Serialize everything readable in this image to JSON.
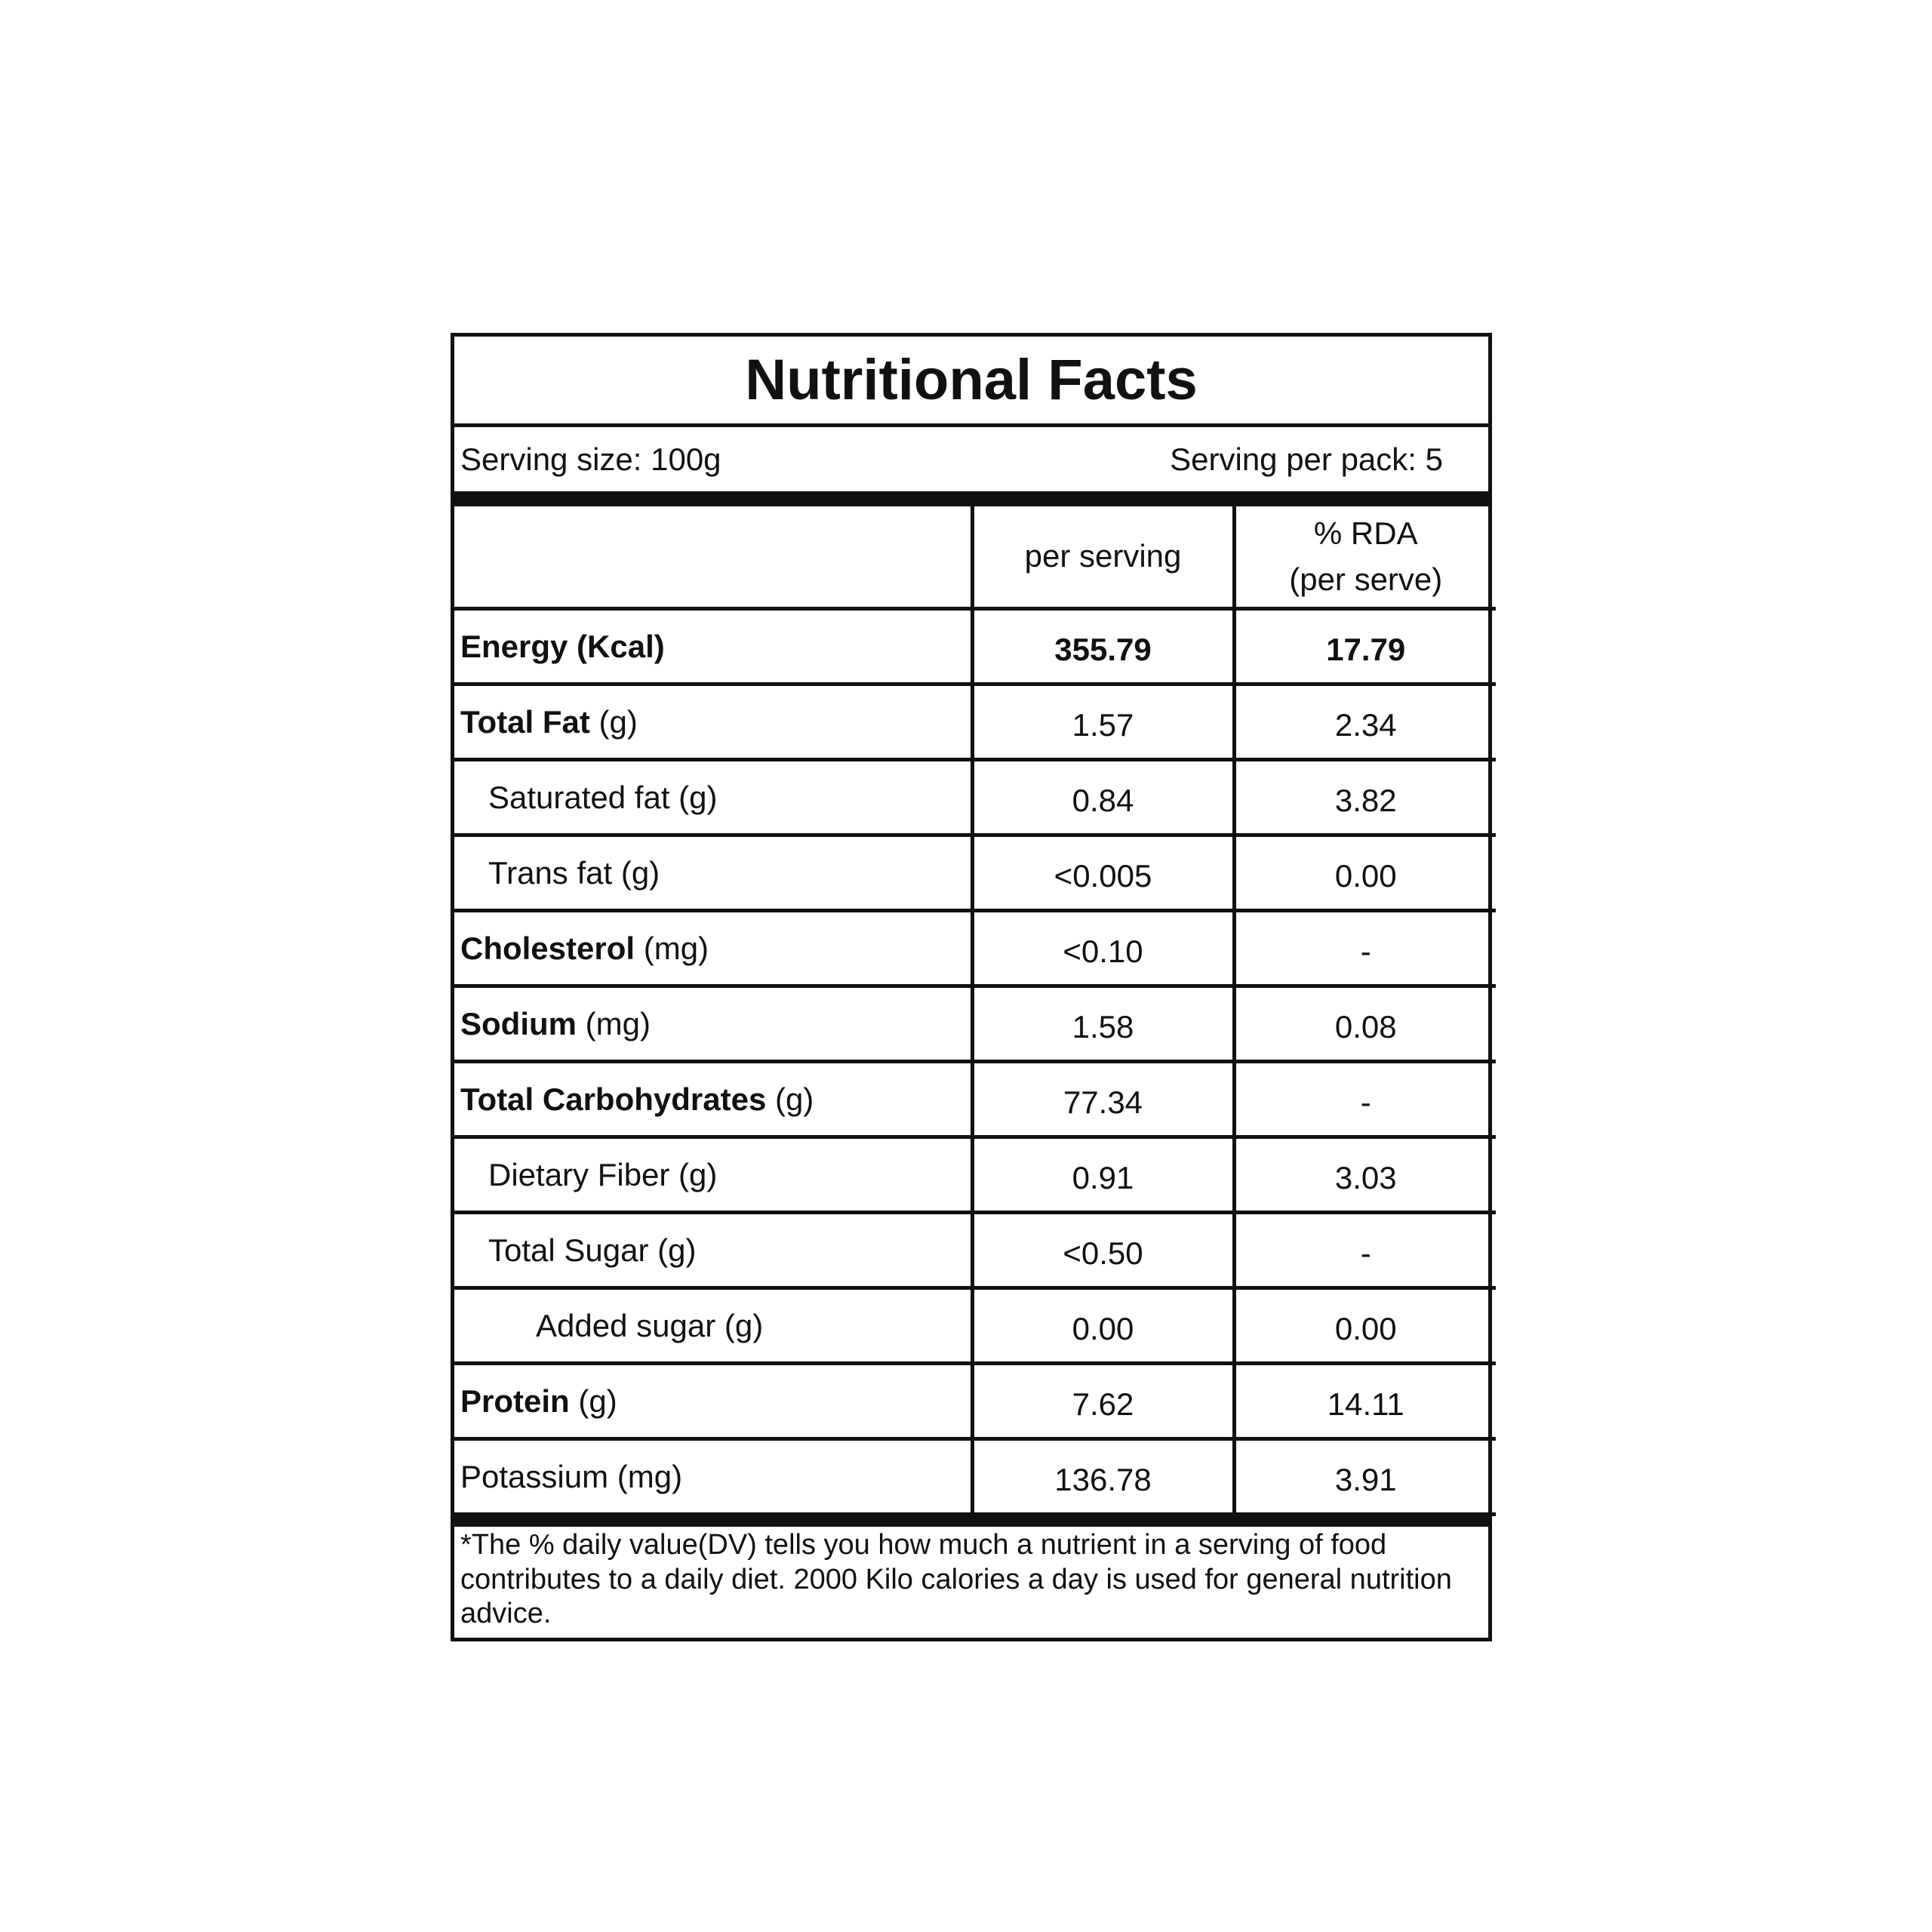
{
  "title": "Nutritional Facts",
  "serving_size": "Serving size: 100g",
  "serving_per_pack": "Serving per pack: 5",
  "columns": {
    "per_serving": "per serving",
    "rda_line1": "% RDA",
    "rda_line2": "(per serve)"
  },
  "rows": [
    {
      "bold": "Energy (Kcal)",
      "unit": "",
      "value": "355.79",
      "rda": "17.79"
    },
    {
      "bold": "Total Fat",
      "unit": " (g)",
      "value": "1.57",
      "rda": "2.34"
    },
    {
      "bold": "",
      "unit": "Saturated fat (g)",
      "value": "0.84",
      "rda": "3.82"
    },
    {
      "bold": "",
      "unit": "Trans fat (g)",
      "value": "<0.005",
      "rda": "0.00"
    },
    {
      "bold": "Cholesterol",
      "unit": " (mg)",
      "value": "<0.10",
      "rda": "-"
    },
    {
      "bold": "Sodium",
      "unit": " (mg)",
      "value": "1.58",
      "rda": "0.08"
    },
    {
      "bold": "Total Carbohydrates",
      "unit": " (g)",
      "value": "77.34",
      "rda": "-"
    },
    {
      "bold": "",
      "unit": "Dietary Fiber (g)",
      "value": "0.91",
      "rda": "3.03"
    },
    {
      "bold": "",
      "unit": "Total Sugar (g)",
      "value": "<0.50",
      "rda": "-"
    },
    {
      "bold": "",
      "unit": "Added sugar (g)",
      "value": "0.00",
      "rda": "0.00"
    },
    {
      "bold": "Protein",
      "unit": " (g)",
      "value": "7.62",
      "rda": "14.11"
    },
    {
      "bold": "",
      "unit": "Potassium (mg)",
      "value": "136.78",
      "rda": "3.91"
    }
  ],
  "footer": "*The % daily value(DV) tells you how much a nutrient in a serving of food contributes to a daily diet. 2000 Kilo calories a day is used for general nutrition advice."
}
